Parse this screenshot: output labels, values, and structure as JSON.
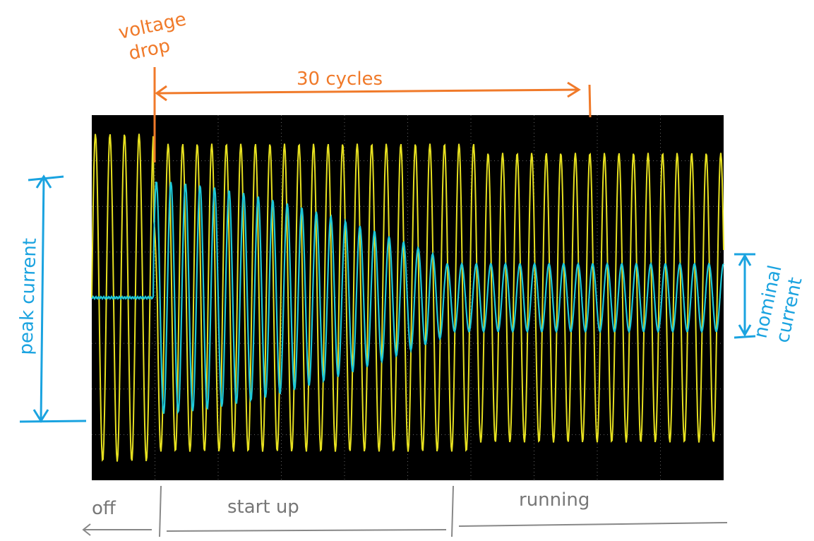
{
  "annotations": {
    "voltage_drop": [
      "voltage",
      "drop"
    ],
    "cycles": "30 cycles",
    "peak_current": "peak current",
    "nominal_current": [
      "nominal",
      "current"
    ]
  },
  "phases": [
    "off",
    "start up",
    "running"
  ]
}
